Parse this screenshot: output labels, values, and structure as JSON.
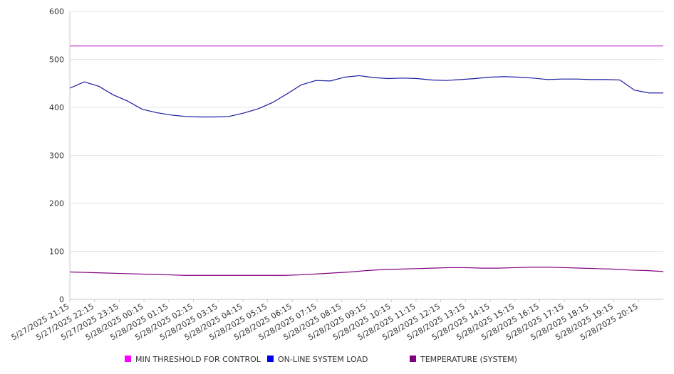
{
  "chart_data": {
    "type": "line",
    "title": "",
    "xlabel": "",
    "ylabel": "",
    "ylim": [
      0,
      600
    ],
    "y_ticks": [
      "0",
      "100",
      "200",
      "300",
      "400",
      "500",
      "600"
    ],
    "grid": "horizontal",
    "legend_position": "bottom",
    "x_tick_labels": [
      "5/27/2025 21:15",
      "5/27/2025 22:15",
      "5/27/2025 23:15",
      "5/28/2025 00:15",
      "5/28/2025 01:15",
      "5/28/2025 02:15",
      "5/28/2025 03:15",
      "5/28/2025 04:15",
      "5/28/2025 05:15",
      "5/28/2025 06:15",
      "5/28/2025 07:15",
      "5/28/2025 08:15",
      "5/28/2025 09:15",
      "5/28/2025 10:15",
      "5/28/2025 11:15",
      "5/28/2025 12:15",
      "5/28/2025 13:15",
      "5/28/2025 14:15",
      "5/28/2025 15:15",
      "5/28/2025 16:15",
      "5/28/2025 17:15",
      "5/28/2025 18:15",
      "5/28/2025 19:15",
      "5/28/2025 20:15"
    ],
    "series": [
      {
        "name": "MIN THRESHOLD FOR CONTROL",
        "color": "#cc33cc",
        "legend_color": "#ff00ff",
        "values": [
          528,
          528,
          528,
          528,
          528,
          528,
          528,
          528,
          528,
          528,
          528,
          528,
          528,
          528,
          528,
          528,
          528,
          528,
          528,
          528,
          528,
          528,
          528,
          528,
          528
        ]
      },
      {
        "name": "ON-LINE SYSTEM LOAD",
        "color": "#1a1aa0",
        "legend_color": "#0000ee",
        "values": [
          440,
          453,
          444,
          426,
          413,
          396,
          389,
          384,
          381,
          380,
          380,
          381,
          388,
          397,
          410,
          428,
          447,
          456,
          455,
          463,
          466,
          462,
          460,
          461,
          460,
          457,
          456,
          458,
          460,
          463,
          464,
          463,
          461,
          458,
          459,
          459,
          458,
          458,
          457,
          436,
          430,
          430
        ]
      },
      {
        "name": "TEMPERATURE (SYSTEM)",
        "color": "#800080",
        "legend_color": "#800080",
        "values": [
          57,
          56,
          55,
          54,
          53,
          52,
          51,
          50,
          50,
          50,
          50,
          50,
          50,
          50,
          51,
          53,
          55,
          57,
          60,
          62,
          63,
          64,
          65,
          66,
          66,
          65,
          65,
          66,
          67,
          67,
          66,
          65,
          64,
          63,
          61,
          60,
          58
        ]
      }
    ]
  }
}
